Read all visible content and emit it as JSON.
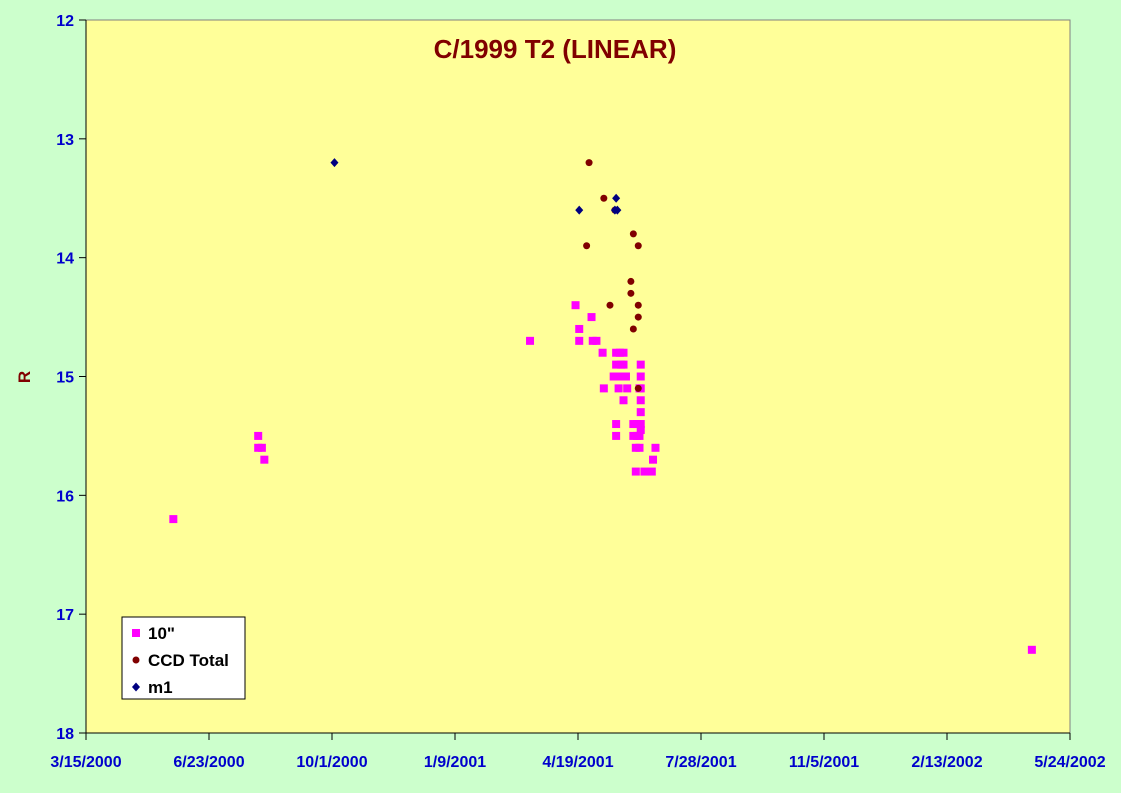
{
  "chart_data": {
    "type": "scatter",
    "title": "C/1999 T2 (LINEAR)",
    "xlabel": "",
    "ylabel": "R",
    "xlim": [
      "3/15/2000",
      "5/24/2002"
    ],
    "x_tick_labels": [
      "3/15/2000",
      "6/23/2000",
      "10/1/2000",
      "1/9/2001",
      "4/19/2001",
      "7/28/2001",
      "11/5/2001",
      "2/13/2002",
      "5/24/2002"
    ],
    "ylim": [
      12,
      18
    ],
    "y_inverted": true,
    "y_tick_labels": [
      "12",
      "13",
      "14",
      "15",
      "16",
      "17",
      "18"
    ],
    "grid": false,
    "legend_position": "bottom-left",
    "series": [
      {
        "name": "10\"",
        "color": "#ff00ff",
        "marker": "square",
        "points": [
          [
            "5/25/2000",
            16.2
          ],
          [
            "8/2/2000",
            15.5
          ],
          [
            "8/2/2000",
            15.6
          ],
          [
            "8/5/2000",
            15.6
          ],
          [
            "8/7/2000",
            15.7
          ],
          [
            "3/11/2001",
            14.7
          ],
          [
            "4/17/2001",
            14.4
          ],
          [
            "4/20/2001",
            14.6
          ],
          [
            "4/20/2001",
            14.7
          ],
          [
            "4/30/2001",
            14.5
          ],
          [
            "5/1/2001",
            14.7
          ],
          [
            "5/4/2001",
            14.7
          ],
          [
            "5/9/2001",
            14.8
          ],
          [
            "5/10/2001",
            15.1
          ],
          [
            "5/18/2001",
            15.0
          ],
          [
            "5/20/2001",
            14.8
          ],
          [
            "5/20/2001",
            14.9
          ],
          [
            "5/20/2001",
            15.5
          ],
          [
            "5/20/2001",
            15.4
          ],
          [
            "5/22/2001",
            15.0
          ],
          [
            "5/22/2001",
            15.1
          ],
          [
            "5/23/2001",
            14.8
          ],
          [
            "5/24/2001",
            14.9
          ],
          [
            "5/25/2001",
            15.0
          ],
          [
            "5/26/2001",
            15.2
          ],
          [
            "5/26/2001",
            14.8
          ],
          [
            "5/26/2001",
            14.9
          ],
          [
            "5/28/2001",
            15.0
          ],
          [
            "5/29/2001",
            15.1
          ],
          [
            "6/3/2001",
            15.4
          ],
          [
            "6/3/2001",
            15.5
          ],
          [
            "6/5/2001",
            15.6
          ],
          [
            "6/5/2001",
            15.8
          ],
          [
            "6/6/2001",
            15.4
          ],
          [
            "6/6/2001",
            15.5
          ],
          [
            "6/8/2001",
            15.1
          ],
          [
            "6/8/2001",
            15.5
          ],
          [
            "6/8/2001",
            15.6
          ],
          [
            "6/9/2001",
            14.9
          ],
          [
            "6/9/2001",
            15.0
          ],
          [
            "6/9/2001",
            15.1
          ],
          [
            "6/9/2001",
            15.2
          ],
          [
            "6/9/2001",
            15.3
          ],
          [
            "6/9/2001",
            15.4
          ],
          [
            "6/9/2001",
            15.45
          ],
          [
            "6/12/2001",
            15.8
          ],
          [
            "6/18/2001",
            15.8
          ],
          [
            "6/19/2001",
            15.7
          ],
          [
            "6/21/2001",
            15.6
          ],
          [
            "4/23/2002",
            17.3
          ]
        ]
      },
      {
        "name": "CCD Total",
        "color": "#800000",
        "marker": "circle",
        "points": [
          [
            "4/26/2001",
            13.9
          ],
          [
            "4/28/2001",
            13.2
          ],
          [
            "5/10/2001",
            13.5
          ],
          [
            "5/15/2001",
            14.4
          ],
          [
            "5/19/2001",
            13.6
          ],
          [
            "6/1/2001",
            14.2
          ],
          [
            "6/1/2001",
            14.3
          ],
          [
            "6/3/2001",
            13.8
          ],
          [
            "6/3/2001",
            14.6
          ],
          [
            "6/7/2001",
            13.9
          ],
          [
            "6/7/2001",
            14.4
          ],
          [
            "6/7/2001",
            14.5
          ],
          [
            "6/7/2001",
            15.1
          ]
        ]
      },
      {
        "name": "m1",
        "color": "#000080",
        "marker": "diamond",
        "points": [
          [
            "10/3/2000",
            13.2
          ],
          [
            "4/20/2001",
            13.6
          ],
          [
            "5/19/2001",
            13.6
          ],
          [
            "5/20/2001",
            13.5
          ],
          [
            "5/21/2001",
            13.6
          ]
        ]
      }
    ]
  }
}
